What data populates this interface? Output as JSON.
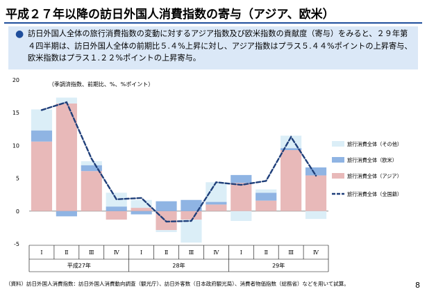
{
  "header": {
    "title": "平成２７年以降の訪日外国人消費指数の寄与（アジア、欧米）",
    "summary": "訪日外国人全体の旅行消費指数の変動に対するアジア指数及び欧米指数の貢献度（寄与）をみると、２９年第４四半期は、訪日外国人全体の前期比５.４%上昇に対し、アジア指数はプラス５.４４%ポイントの上昇寄与、欧米指数はプラス１.２２%ポイントの上昇寄与。"
  },
  "chart_data": {
    "type": "bar",
    "stacked": true,
    "note": "（季調済指数、前期比、%、%ポイント）",
    "categories": [
      "Ⅰ",
      "Ⅱ",
      "Ⅲ",
      "Ⅳ",
      "Ⅰ",
      "Ⅱ",
      "Ⅲ",
      "Ⅳ",
      "Ⅰ",
      "Ⅱ",
      "Ⅲ",
      "Ⅳ"
    ],
    "year_labels": [
      {
        "label": "平成27年",
        "span": [
          0,
          3
        ]
      },
      {
        "label": "28年",
        "span": [
          4,
          7
        ]
      },
      {
        "label": "29年",
        "span": [
          8,
          11
        ]
      }
    ],
    "series": [
      {
        "name": "旅行消費全体（その他）",
        "kind": "bar",
        "color": "#dbeef7",
        "values": [
          3.2,
          0.9,
          0.6,
          2.1,
          1.2,
          -0.3,
          -3.5,
          3.0,
          -1.5,
          0.5,
          1.9,
          -1.2
        ]
      },
      {
        "name": "旅行消費全体（欧米）",
        "kind": "bar",
        "color": "#8fb4e3",
        "values": [
          1.7,
          -0.8,
          0.9,
          0.7,
          -0.5,
          1.5,
          1.7,
          0.4,
          1.2,
          1.2,
          0.3,
          1.22
        ]
      },
      {
        "name": "旅行消費全体（アジア）",
        "kind": "bar",
        "color": "#e8b9b9",
        "values": [
          10.6,
          16.4,
          6.1,
          -1.3,
          0.5,
          -2.9,
          -1.3,
          1.0,
          4.3,
          1.6,
          9.3,
          5.44
        ]
      },
      {
        "name": "旅行消費全体（全国籍）",
        "kind": "line",
        "color": "#1f3f7a",
        "values": [
          15.4,
          16.6,
          8.0,
          1.8,
          2.0,
          -1.6,
          -1.5,
          4.4,
          4.0,
          4.6,
          11.3,
          5.4
        ]
      }
    ],
    "ylim": [
      -5,
      20
    ],
    "yticks": [
      -5,
      0,
      5,
      10,
      15,
      20
    ],
    "legend_position": "right"
  },
  "footnote": "（資料）訪日外国人消費指数：訪日外国人消費動向調査（観光庁）、訪日外客数（日本政府観光局）、消費者物価指数（総務省）などを用いて試算。",
  "page_number": "8"
}
